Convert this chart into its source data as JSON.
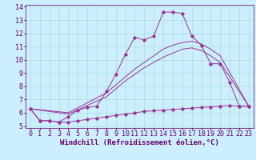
{
  "x_ticks": [
    0,
    1,
    2,
    3,
    4,
    5,
    6,
    7,
    8,
    9,
    10,
    11,
    12,
    13,
    14,
    15,
    16,
    17,
    18,
    19,
    20,
    21,
    22,
    23
  ],
  "line_jagged_x": [
    0,
    1,
    2,
    3,
    4,
    5,
    6,
    7,
    8,
    9,
    10,
    11,
    12,
    13,
    14,
    15,
    16,
    17,
    18,
    19,
    20,
    21,
    22,
    23
  ],
  "line_jagged_y": [
    6.3,
    5.4,
    5.4,
    5.3,
    5.7,
    6.2,
    6.4,
    6.5,
    7.6,
    8.9,
    10.4,
    11.7,
    11.5,
    11.8,
    13.6,
    13.6,
    13.5,
    11.8,
    11.1,
    9.7,
    9.7,
    8.3,
    6.5,
    6.5
  ],
  "line_smooth1_x": [
    0,
    4,
    8,
    9,
    10,
    11,
    12,
    13,
    14,
    15,
    16,
    17,
    18,
    19,
    20,
    23
  ],
  "line_smooth1_y": [
    6.3,
    6.0,
    7.5,
    8.1,
    8.7,
    9.3,
    9.8,
    10.3,
    10.8,
    11.1,
    11.3,
    11.4,
    11.2,
    10.8,
    10.3,
    6.5
  ],
  "line_smooth2_x": [
    0,
    4,
    8,
    9,
    10,
    11,
    12,
    13,
    14,
    15,
    16,
    17,
    18,
    19,
    20,
    23
  ],
  "line_smooth2_y": [
    6.3,
    5.9,
    7.2,
    7.8,
    8.4,
    8.9,
    9.4,
    9.8,
    10.2,
    10.5,
    10.8,
    10.9,
    10.7,
    10.3,
    9.8,
    6.5
  ],
  "line_flat_x": [
    0,
    1,
    2,
    3,
    4,
    5,
    6,
    7,
    8,
    9,
    10,
    11,
    12,
    13,
    14,
    15,
    16,
    17,
    18,
    19,
    20,
    21,
    22,
    23
  ],
  "line_flat_y": [
    6.3,
    5.4,
    5.4,
    5.3,
    5.3,
    5.4,
    5.5,
    5.6,
    5.7,
    5.8,
    5.9,
    6.0,
    6.1,
    6.15,
    6.2,
    6.25,
    6.3,
    6.35,
    6.4,
    6.45,
    6.5,
    6.55,
    6.5,
    6.5
  ],
  "line_color": "#993399",
  "bg_color": "#cceeff",
  "grid_color": "#aaddcc",
  "xlabel": "Windchill (Refroidissement éolien,°C)",
  "ylim": [
    5,
    14
  ],
  "xlim": [
    -0.5,
    23.5
  ],
  "yticks": [
    5,
    6,
    7,
    8,
    9,
    10,
    11,
    12,
    13,
    14
  ],
  "font_color": "#660066",
  "tick_fontsize": 6,
  "xlabel_fontsize": 6.5
}
